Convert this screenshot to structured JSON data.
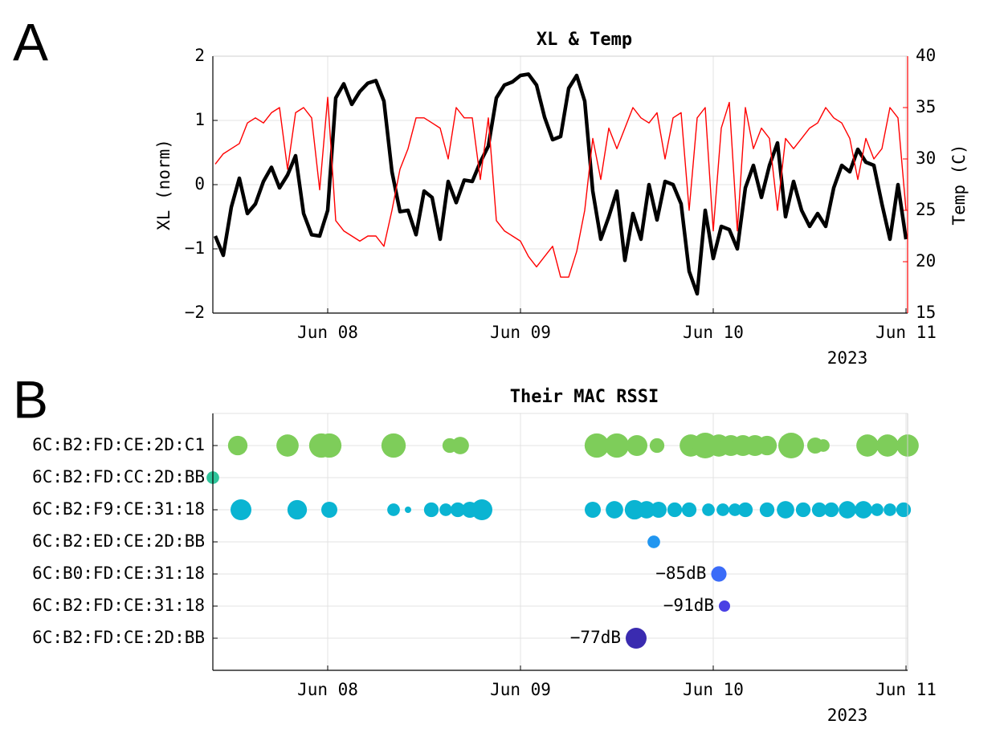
{
  "chart_data": [
    {
      "type": "line",
      "panel_label": "A",
      "title": "XL & Temp",
      "ylabel": "XL (norm)",
      "y2label": "Temp (C)",
      "x": [
        "2023-06-07T10:00",
        "2023-06-07T11:00",
        "2023-06-07T12:00",
        "2023-06-07T13:00",
        "2023-06-07T14:00",
        "2023-06-07T15:00",
        "2023-06-07T16:00",
        "2023-06-07T17:00",
        "2023-06-07T18:00",
        "2023-06-07T19:00",
        "2023-06-07T20:00",
        "2023-06-07T21:00",
        "2023-06-07T22:00",
        "2023-06-07T23:00",
        "2023-06-08T00:00",
        "2023-06-08T01:00",
        "2023-06-08T02:00",
        "2023-06-08T03:00",
        "2023-06-08T04:00",
        "2023-06-08T05:00",
        "2023-06-08T06:00",
        "2023-06-08T07:00",
        "2023-06-08T08:00",
        "2023-06-08T09:00",
        "2023-06-08T10:00",
        "2023-06-08T11:00",
        "2023-06-08T12:00",
        "2023-06-08T13:00",
        "2023-06-08T14:00",
        "2023-06-08T15:00",
        "2023-06-08T16:00",
        "2023-06-08T17:00",
        "2023-06-08T18:00",
        "2023-06-08T19:00",
        "2023-06-08T20:00",
        "2023-06-08T21:00",
        "2023-06-08T22:00",
        "2023-06-08T23:00",
        "2023-06-09T00:00",
        "2023-06-09T01:00",
        "2023-06-09T02:00",
        "2023-06-09T03:00",
        "2023-06-09T04:00",
        "2023-06-09T05:00",
        "2023-06-09T06:00",
        "2023-06-09T07:00",
        "2023-06-09T08:00",
        "2023-06-09T09:00",
        "2023-06-09T10:00",
        "2023-06-09T11:00",
        "2023-06-09T12:00",
        "2023-06-09T13:00",
        "2023-06-09T14:00",
        "2023-06-09T15:00",
        "2023-06-09T16:00",
        "2023-06-09T17:00",
        "2023-06-09T18:00",
        "2023-06-09T19:00",
        "2023-06-09T20:00",
        "2023-06-09T21:00",
        "2023-06-09T22:00",
        "2023-06-09T23:00",
        "2023-06-10T00:00",
        "2023-06-10T01:00",
        "2023-06-10T02:00",
        "2023-06-10T03:00",
        "2023-06-10T04:00",
        "2023-06-10T05:00",
        "2023-06-10T06:00",
        "2023-06-10T07:00",
        "2023-06-10T08:00",
        "2023-06-10T09:00",
        "2023-06-10T10:00",
        "2023-06-10T11:00",
        "2023-06-10T12:00",
        "2023-06-10T13:00",
        "2023-06-10T14:00",
        "2023-06-10T15:00",
        "2023-06-10T16:00",
        "2023-06-10T17:00",
        "2023-06-10T18:00",
        "2023-06-10T19:00",
        "2023-06-10T20:00",
        "2023-06-10T21:00",
        "2023-06-10T22:00",
        "2023-06-10T23:00",
        "2023-06-11T00:00"
      ],
      "xlim": [
        "2023-06-07T09:42",
        "2023-06-11T00:12"
      ],
      "xticks": [
        {
          "value": "2023-06-08T00:00",
          "label": "Jun 08"
        },
        {
          "value": "2023-06-09T00:00",
          "label": "Jun 09"
        },
        {
          "value": "2023-06-10T00:00",
          "label": "Jun 10"
        },
        {
          "value": "2023-06-11T00:00",
          "label": "Jun 11"
        }
      ],
      "x_year_label": "2023",
      "ylim": [
        -2,
        2
      ],
      "yticks": [
        {
          "value": -2,
          "label": "−2"
        },
        {
          "value": -1,
          "label": "−1"
        },
        0,
        1,
        2
      ],
      "y2lim": [
        15,
        40
      ],
      "y2ticks": [
        15,
        20,
        25,
        30,
        35,
        40
      ],
      "y2color": "#ff0000",
      "grid": true,
      "series": [
        {
          "color": "#000000",
          "axis": "y",
          "values": [
            -0.8,
            -1.1,
            -0.35,
            0.1,
            -0.45,
            -0.3,
            0.05,
            0.27,
            -0.05,
            0.15,
            0.45,
            -0.45,
            -0.78,
            -0.8,
            -0.4,
            1.35,
            1.57,
            1.25,
            1.45,
            1.58,
            1.62,
            1.3,
            0.2,
            -0.42,
            -0.4,
            -0.78,
            -0.1,
            -0.2,
            -0.85,
            0.05,
            -0.28,
            0.07,
            0.05,
            0.35,
            0.6,
            1.35,
            1.55,
            1.6,
            1.7,
            1.72,
            1.55,
            1.05,
            0.7,
            0.75,
            1.5,
            1.7,
            1.3,
            -0.1,
            -0.85,
            -0.5,
            -0.1,
            -1.18,
            -0.45,
            -0.85,
            0,
            -0.55,
            0.05,
            0,
            -0.3,
            -1.35,
            -1.7,
            -0.4,
            -1.15,
            -0.65,
            -0.7,
            -1.0,
            -0.05,
            0.3,
            -0.2,
            0.3,
            0.65,
            -0.5,
            0.05,
            -0.4,
            -0.65,
            -0.45,
            -0.65,
            -0.05,
            0.3,
            0.2,
            0.55,
            0.35,
            0.3,
            -0.3,
            -0.85,
            0,
            -0.85
          ]
        },
        {
          "color": "#ff0000",
          "axis": "y2",
          "values": [
            29.5,
            30.5,
            31,
            31.5,
            33.5,
            34,
            33.5,
            34.5,
            35,
            29,
            34.5,
            35,
            34,
            27,
            36,
            24,
            23,
            22.5,
            22,
            22.5,
            22.5,
            21.5,
            25,
            29,
            31,
            34,
            34,
            33.5,
            33,
            30,
            35,
            34,
            34,
            28,
            34,
            24,
            23,
            22.5,
            22,
            20.5,
            19.5,
            20.5,
            21.5,
            18.5,
            18.5,
            21,
            25,
            32,
            28,
            33,
            31,
            33,
            35,
            34,
            33.5,
            34.5,
            30,
            34,
            34.5,
            25,
            34,
            35,
            23,
            33,
            35.5,
            23,
            35,
            31,
            33,
            32,
            25,
            32,
            31,
            32,
            33,
            33.5,
            35,
            34,
            33.5,
            32,
            28,
            32,
            30,
            31,
            35,
            34,
            25
          ]
        }
      ]
    },
    {
      "type": "bubble",
      "panel_label": "B",
      "title": "Their MAC RSSI",
      "categories": [
        "6C:B2:FD:CE:2D:C1",
        "6C:B2:FD:CC:2D:BB",
        "6C:B2:F9:CE:31:18",
        "6C:B2:ED:CE:2D:BB",
        "6C:B0:FD:CE:31:18",
        "6C:B2:FD:CE:31:18",
        "6C:B2:FD:CE:2D:BB"
      ],
      "xlim": [
        "2023-06-07T09:42",
        "2023-06-11T00:12"
      ],
      "xticks": [
        {
          "value": "2023-06-08T00:00",
          "label": "Jun 08"
        },
        {
          "value": "2023-06-09T00:00",
          "label": "Jun 09"
        },
        {
          "value": "2023-06-10T00:00",
          "label": "Jun 10"
        },
        {
          "value": "2023-06-11T00:00",
          "label": "Jun 11"
        }
      ],
      "x_year_label": "2023",
      "grid": true,
      "series": [
        {
          "color": "#7ecd5a",
          "x": [
            "2023-06-07T12:48",
            "2023-06-07T19:00",
            "2023-06-07T23:12",
            "2023-06-08T00:12",
            "2023-06-08T08:12",
            "2023-06-08T15:12",
            "2023-06-08T16:30",
            "2023-06-09T09:30",
            "2023-06-09T12:00",
            "2023-06-09T14:30",
            "2023-06-09T17:00",
            "2023-06-09T21:12",
            "2023-06-09T23:00",
            "2023-06-10T00:42",
            "2023-06-10T02:12",
            "2023-06-10T03:42",
            "2023-06-10T05:12",
            "2023-06-10T06:42",
            "2023-06-10T09:42",
            "2023-06-10T12:42",
            "2023-06-10T13:42",
            "2023-06-10T19:12",
            "2023-06-10T21:42",
            "2023-06-11T00:12"
          ],
          "values": [
            -79,
            -75,
            -72,
            -72,
            -72,
            -86,
            -82,
            -72,
            -72,
            -77,
            -86,
            -75,
            -70,
            -75,
            -77,
            -77,
            -77,
            -79,
            -70,
            -84,
            -89,
            -75,
            -75,
            -75
          ]
        },
        {
          "color": "#2ec49a",
          "x": [
            "2023-06-07T09:42"
          ],
          "values": [
            -89
          ]
        },
        {
          "color": "#0ab4d2",
          "x": [
            "2023-06-07T13:12",
            "2023-06-07T20:12",
            "2023-06-08T00:12",
            "2023-06-08T08:12",
            "2023-06-08T10:00",
            "2023-06-08T12:54",
            "2023-06-08T14:42",
            "2023-06-08T16:12",
            "2023-06-08T17:42",
            "2023-06-08T19:12",
            "2023-06-09T09:00",
            "2023-06-09T11:42",
            "2023-06-09T14:12",
            "2023-06-09T15:42",
            "2023-06-09T17:12",
            "2023-06-09T19:12",
            "2023-06-09T21:00",
            "2023-06-09T23:24",
            "2023-06-10T01:12",
            "2023-06-10T02:42",
            "2023-06-10T04:00",
            "2023-06-10T06:42",
            "2023-06-10T09:00",
            "2023-06-10T11:12",
            "2023-06-10T13:12",
            "2023-06-10T14:42",
            "2023-06-10T16:42",
            "2023-06-10T18:42",
            "2023-06-10T20:24",
            "2023-06-10T22:00",
            "2023-06-10T23:42"
          ],
          "values": [
            -77,
            -79,
            -84,
            -89,
            -98,
            -86,
            -89,
            -86,
            -84,
            -77,
            -84,
            -82,
            -79,
            -82,
            -84,
            -86,
            -86,
            -89,
            -89,
            -89,
            -86,
            -86,
            -82,
            -86,
            -86,
            -86,
            -82,
            -82,
            -89,
            -89,
            -86
          ]
        },
        {
          "color": "#2196f0",
          "x": [
            "2023-06-09T16:36"
          ],
          "values": [
            -89
          ]
        },
        {
          "color": "#3b6cf8",
          "x": [
            "2023-06-10T00:42"
          ],
          "values": [
            -85
          ],
          "value_labels": [
            "−85dB"
          ]
        },
        {
          "color": "#4a40e4",
          "x": [
            "2023-06-10T01:24"
          ],
          "values": [
            -91
          ],
          "value_labels": [
            "−91dB"
          ]
        },
        {
          "color": "#3a2bb0",
          "x": [
            "2023-06-09T14:24"
          ],
          "values": [
            -77
          ],
          "value_labels": [
            "−77dB"
          ]
        }
      ]
    }
  ]
}
